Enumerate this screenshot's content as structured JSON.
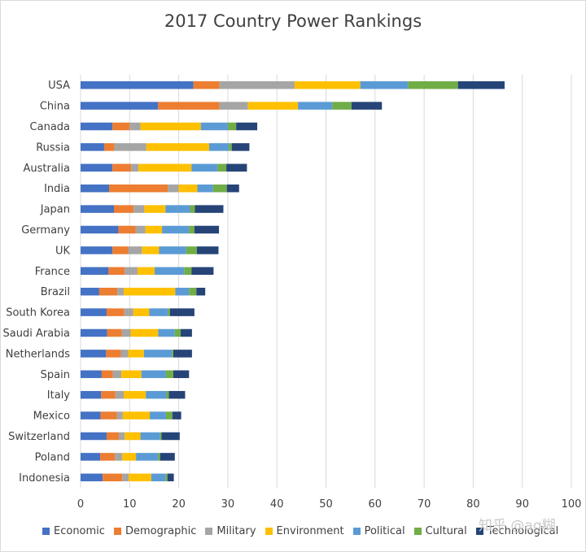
{
  "chart_data": {
    "type": "bar",
    "orientation": "horizontal",
    "stacked": true,
    "title": "2017 Country Power Rankings",
    "categories": [
      "USA",
      "China",
      "Canada",
      "Russia",
      "Australia",
      "India",
      "Japan",
      "Germany",
      "UK",
      "France",
      "Brazil",
      "South Korea",
      "Saudi Arabia",
      "Netherlands",
      "Spain",
      "Italy",
      "Mexico",
      "Switzerland",
      "Poland",
      "Indonesia"
    ],
    "series": [
      {
        "name": "Economic",
        "color": "#4472c4",
        "values": [
          23,
          15.8,
          6.5,
          4.8,
          6.5,
          5.8,
          6.8,
          7.7,
          6.5,
          5.7,
          3.8,
          5.3,
          5.4,
          5.2,
          4.3,
          4.2,
          4.1,
          5.3,
          4.0,
          4.5
        ]
      },
      {
        "name": "Demographic",
        "color": "#ed7d31",
        "values": [
          5.3,
          12.5,
          3.5,
          2.1,
          3.8,
          12.0,
          4.0,
          3.5,
          3.2,
          3.3,
          3.7,
          3.6,
          3.0,
          3.0,
          2.3,
          2.9,
          3.3,
          2.5,
          3.0,
          4.0
        ]
      },
      {
        "name": "Military",
        "color": "#a5a5a5",
        "values": [
          15.3,
          5.8,
          2.2,
          6.5,
          1.5,
          2.2,
          2.2,
          2.0,
          2.8,
          2.6,
          1.3,
          1.8,
          1.8,
          1.5,
          1.7,
          1.7,
          1.2,
          1.2,
          1.5,
          1.3
        ]
      },
      {
        "name": "Environment",
        "color": "#ffc000",
        "values": [
          13.4,
          10.2,
          12.3,
          12.8,
          10.8,
          3.8,
          4.3,
          3.4,
          3.5,
          3.5,
          10.5,
          3.3,
          5.6,
          3.2,
          4.1,
          4.5,
          5.5,
          3.2,
          2.8,
          4.6
        ]
      },
      {
        "name": "Political",
        "color": "#5b9bd5",
        "values": [
          9.7,
          7.0,
          5.5,
          4.0,
          5.3,
          3.2,
          5.0,
          5.5,
          5.5,
          6.0,
          2.8,
          3.8,
          3.4,
          5.7,
          5.0,
          4.2,
          3.3,
          4.0,
          4.5,
          2.9
        ]
      },
      {
        "name": "Cultural",
        "color": "#70ad47",
        "values": [
          10.2,
          3.9,
          1.7,
          0.6,
          1.8,
          2.8,
          1.0,
          1.1,
          2.2,
          1.5,
          1.5,
          0.4,
          1.2,
          0.3,
          1.5,
          0.5,
          1.3,
          0.3,
          0.4,
          0.4
        ]
      },
      {
        "name": "Technological",
        "color": "#264478",
        "values": [
          9.5,
          6.2,
          4.3,
          3.6,
          4.2,
          2.5,
          5.8,
          5.0,
          4.4,
          4.5,
          1.8,
          5.0,
          2.3,
          3.8,
          3.2,
          3.3,
          1.8,
          3.7,
          3.0,
          1.3
        ]
      }
    ],
    "xlim": [
      0,
      100
    ],
    "xticks": [
      0,
      10,
      20,
      30,
      40,
      50,
      60,
      70,
      80,
      90,
      100
    ],
    "grid": "vertical",
    "legend": "bottom"
  },
  "watermark": "知乎 @ag糊"
}
